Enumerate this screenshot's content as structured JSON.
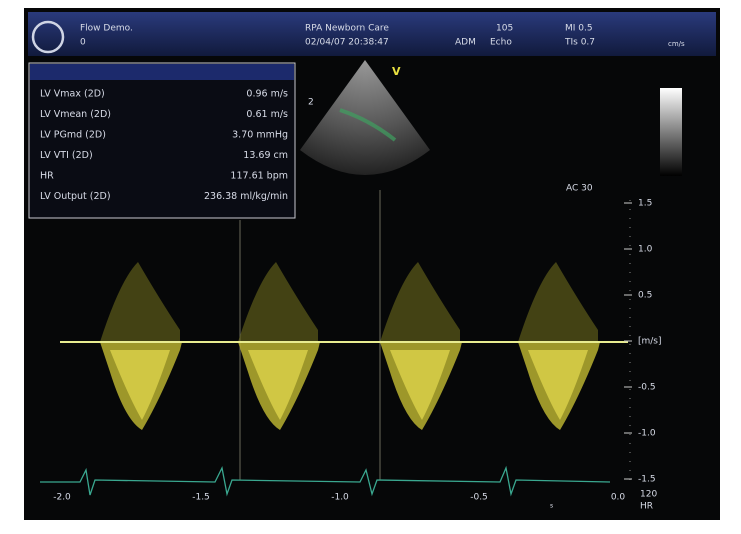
{
  "header": {
    "site": "Flow Demo.",
    "site_sub": "0",
    "clinic": "RPA Newborn Care",
    "datetime": "02/04/07 20:38:47",
    "operator": "ADM",
    "mode": "Echo",
    "frame": "105",
    "mi": "MI 0.5",
    "tis": "TIs 0.7",
    "unit": "cm/s"
  },
  "measurements": {
    "rows": [
      [
        "LV Vmax (2D)",
        "0.96 m/s"
      ],
      [
        "LV Vmean (2D)",
        "0.61 m/s"
      ],
      [
        "LV PGmd (2D)",
        "3.70 mmHg"
      ],
      [
        "LV VTI (2D)",
        "13.69 cm"
      ],
      [
        "HR",
        "117.61 bpm"
      ],
      [
        "LV Output (2D)",
        "236.38 ml/kg/min"
      ]
    ]
  },
  "image": {
    "marker": "V",
    "depth": "2",
    "ac": "AC 30"
  },
  "scale": {
    "labels": [
      "1.5",
      "1.0",
      "0.5",
      "[m/s]",
      "-0.5",
      "-1.0",
      "-1.5"
    ]
  },
  "time": {
    "labels": [
      "-2.0",
      "-1.5",
      "-1.0",
      "-0.5",
      "0.0"
    ],
    "unit": "s"
  },
  "ecg": {
    "rate": "120",
    "label": "HR"
  }
}
